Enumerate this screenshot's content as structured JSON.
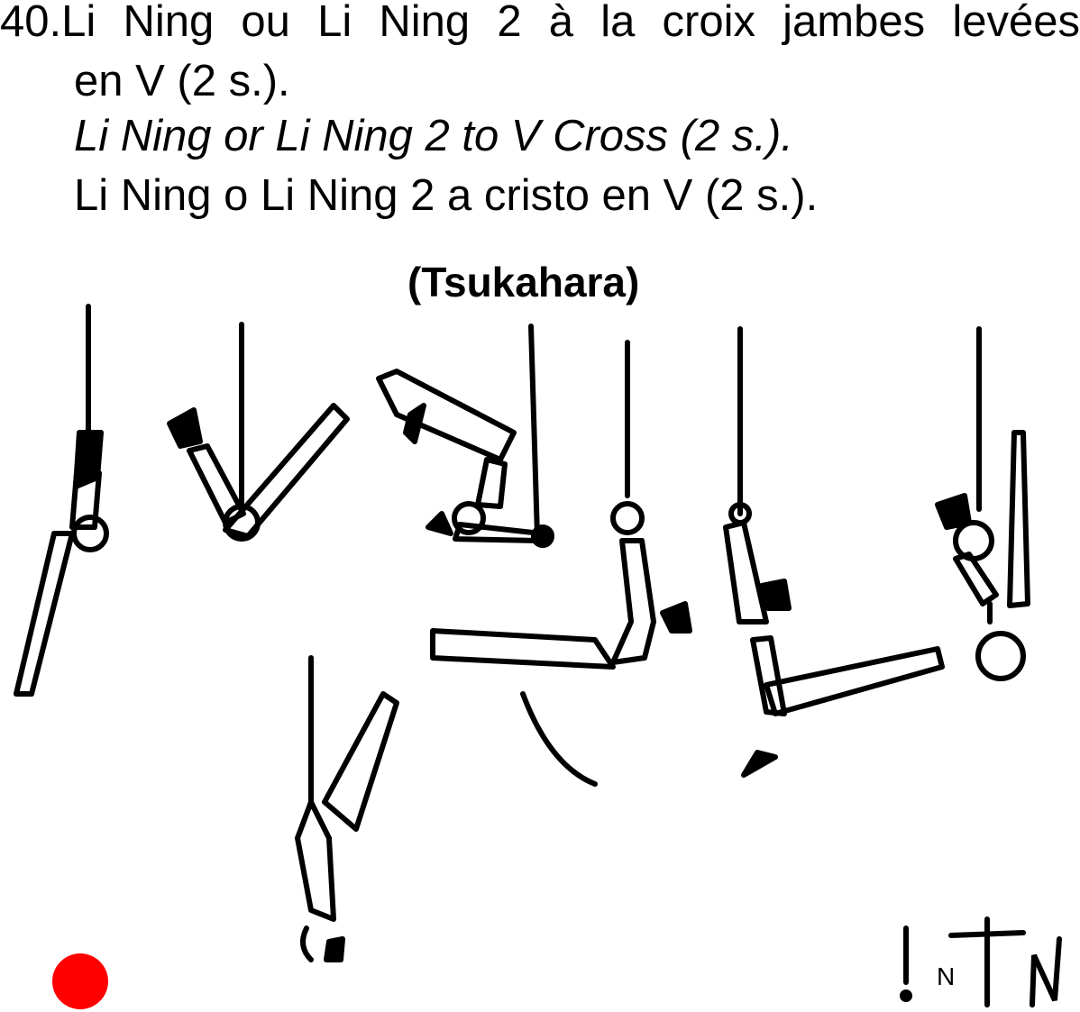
{
  "element": {
    "number_and_title_words": [
      "40.Li",
      "Ning",
      "ou",
      "Li",
      "Ning",
      "2",
      "à",
      "la",
      "croix",
      "jambes",
      "levées"
    ],
    "title_fr_cont": "en V (2 s.).",
    "title_en": "Li Ning or Li Ning 2 to V Cross (2 s.).",
    "title_es": "Li Ning  o Li Ning 2 a cristo en V (2 s.).",
    "subtitle": "(Tsukahara)"
  },
  "figure": {
    "icon": "gymnast-rings-sequence-drawing"
  },
  "difficulty": {
    "color": "#ff0000",
    "icon": "red-dot"
  },
  "notation": {
    "icon": "handwritten-symbol-notation",
    "letter": "N"
  }
}
